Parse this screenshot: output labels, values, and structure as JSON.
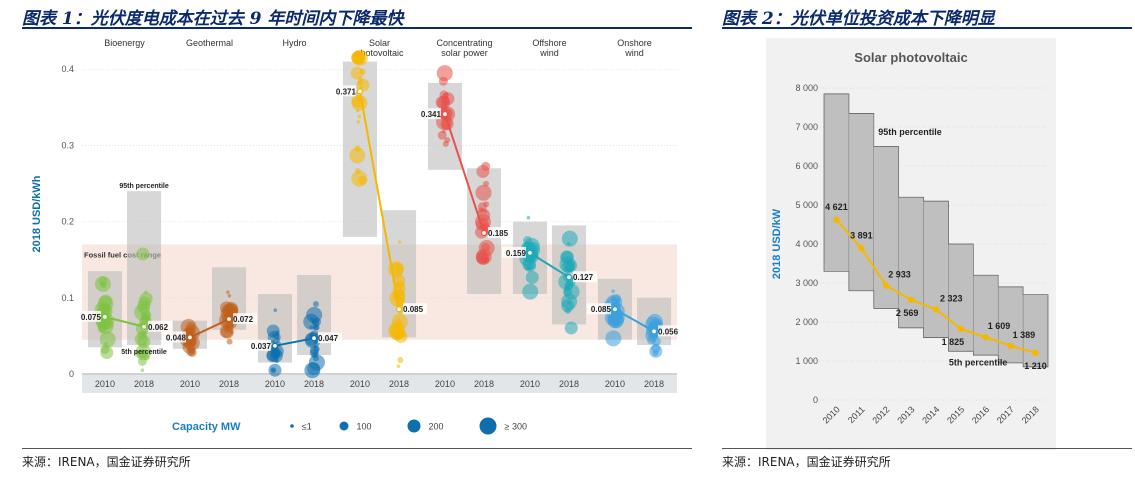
{
  "left_figure": {
    "title": "图表 1：光伏度电成本在过去 9 年时间内下降最快",
    "source": "来源：IRENA，国金证券研究所"
  },
  "right_figure": {
    "title": "图表 2：光伏单位投资成本下降明显",
    "source": "来源：IRENA，国金证券研究所"
  },
  "chart_data": [
    {
      "type": "scatter",
      "ylabel": "2018 USD/kWh",
      "ylim": [
        0,
        0.42
      ],
      "yticks": [
        0,
        0.1,
        0.2,
        0.3,
        0.4
      ],
      "ytick_labels": [
        "0",
        "0.1",
        "0.2",
        "0.3",
        "0.4"
      ],
      "fossil_range": {
        "label": "Fossil fuel cost range",
        "low": 0.045,
        "high": 0.17
      },
      "percentile_labels": {
        "p95": "95th percentile",
        "p5": "5th percentile"
      },
      "technologies": [
        {
          "name": "Bioenergy",
          "color": "#7dc242",
          "years": [
            {
              "year": "2010",
              "avg": 0.075,
              "avg_label": "0.075",
              "box": [
                0.035,
                0.135
              ]
            },
            {
              "year": "2018",
              "avg": 0.062,
              "avg_label": "0.062",
              "box": [
                0.038,
                0.24
              ]
            }
          ]
        },
        {
          "name": "Geothermal",
          "color": "#c0601e",
          "years": [
            {
              "year": "2010",
              "avg": 0.048,
              "avg_label": "0.048",
              "box": [
                0.033,
                0.07
              ]
            },
            {
              "year": "2018",
              "avg": 0.072,
              "avg_label": "0.072",
              "box": [
                0.058,
                0.14
              ]
            }
          ]
        },
        {
          "name": "Hydro",
          "color": "#0f6fad",
          "years": [
            {
              "year": "2010",
              "avg": 0.037,
              "avg_label": "0.037",
              "box": [
                0.015,
                0.105
              ]
            },
            {
              "year": "2018",
              "avg": 0.047,
              "avg_label": "0.047",
              "box": [
                0.025,
                0.13
              ]
            }
          ]
        },
        {
          "name": "Solar photovoltaic",
          "color": "#f5b800",
          "years": [
            {
              "year": "2010",
              "avg": 0.371,
              "avg_label": "0.371",
              "box": [
                0.18,
                0.41
              ]
            },
            {
              "year": "2018",
              "avg": 0.085,
              "avg_label": "0.085",
              "box": [
                0.048,
                0.215
              ]
            }
          ]
        },
        {
          "name": "Concentrating solar power",
          "color": "#e8524a",
          "years": [
            {
              "year": "2010",
              "avg": 0.341,
              "avg_label": "0.341",
              "box": [
                0.268,
                0.382
              ]
            },
            {
              "year": "2018",
              "avg": 0.185,
              "avg_label": "0.185",
              "box": [
                0.105,
                0.27
              ]
            }
          ]
        },
        {
          "name": "Offshore wind",
          "color": "#1ea9b8",
          "years": [
            {
              "year": "2010",
              "avg": 0.159,
              "avg_label": "0.159",
              "box": [
                0.105,
                0.2
              ]
            },
            {
              "year": "2018",
              "avg": 0.127,
              "avg_label": "0.127",
              "box": [
                0.065,
                0.195
              ]
            }
          ]
        },
        {
          "name": "Onshore wind",
          "color": "#3aa0de",
          "years": [
            {
              "year": "2010",
              "avg": 0.085,
              "avg_label": "0.085",
              "box": [
                0.045,
                0.125
              ]
            },
            {
              "year": "2018",
              "avg": 0.056,
              "avg_label": "0.056",
              "box": [
                0.038,
                0.1
              ]
            }
          ]
        }
      ],
      "legend": {
        "title": "Capacity MW",
        "items": [
          "≤1",
          "100",
          "200",
          "≥ 300"
        ],
        "placement": "bottom"
      }
    },
    {
      "type": "line",
      "title": "Solar photovoltaic",
      "ylabel": "2018 USD/kW",
      "ylim": [
        0,
        8000
      ],
      "yticks": [
        0,
        1000,
        2000,
        3000,
        4000,
        5000,
        6000,
        7000,
        8000
      ],
      "ytick_labels": [
        "0",
        "1 000",
        "2 000",
        "3 000",
        "4 000",
        "5 000",
        "6 000",
        "7 000",
        "8 000"
      ],
      "x": [
        "2010",
        "2011",
        "2012",
        "2013",
        "2014",
        "2015",
        "2016",
        "2017",
        "2018"
      ],
      "values": [
        4621,
        3891,
        2933,
        2569,
        2323,
        1825,
        1609,
        1389,
        1210
      ],
      "value_labels": [
        "4 621",
        "3 891",
        "2 933",
        "2 569",
        "2 323",
        "1 825",
        "1 609",
        "1 389",
        "1 210"
      ],
      "p95": [
        7850,
        7350,
        6500,
        5200,
        5100,
        4000,
        3200,
        2900,
        2700
      ],
      "p5": [
        3300,
        2800,
        2350,
        1850,
        1600,
        1250,
        1150,
        950,
        850
      ],
      "annotations": [
        "95th percentile",
        "5th percentile"
      ],
      "color": "#f5b800"
    }
  ]
}
